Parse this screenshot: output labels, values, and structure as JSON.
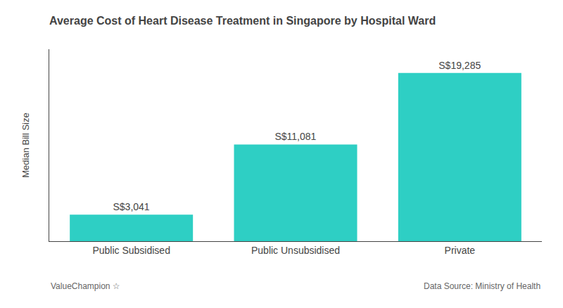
{
  "chart_data": {
    "type": "bar",
    "title": "Average Cost of Heart Disease Treatment in Singapore by Hospital Ward",
    "categories": [
      "Public Subsidised",
      "Public Unsubsidised",
      "Private"
    ],
    "values": [
      3041,
      11081,
      19285
    ],
    "value_labels": [
      "S$3,041",
      "S$11,081",
      "S$19,285"
    ],
    "data_labels": true,
    "color": "#2ecfc4",
    "ylabel": "Median Bill Size",
    "ylim": [
      0,
      22000
    ],
    "tick_labels": "x",
    "grid": false,
    "annotations": [
      "ValueChampion ☆",
      "Data Source: Ministry of Health"
    ]
  }
}
